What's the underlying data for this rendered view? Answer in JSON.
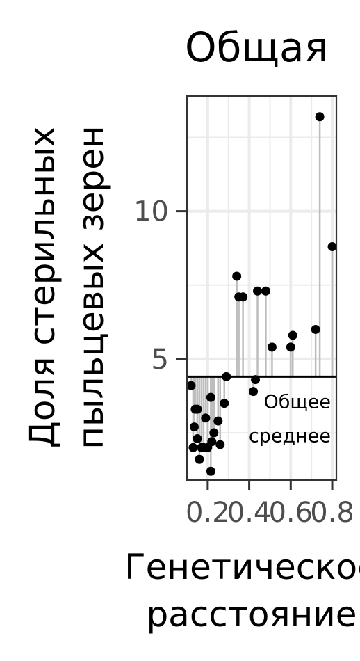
{
  "chart_data": {
    "type": "scatter",
    "title": "Общая",
    "xlabel_lines": [
      "Генетическое",
      "расстояние"
    ],
    "ylabel_lines": [
      "Доля стерильных",
      "пыльцевых зерен"
    ],
    "xlim": [
      0.1,
      0.82
    ],
    "ylim": [
      0.9,
      13.9
    ],
    "x_ticks": [
      0.2,
      0.4,
      0.6,
      0.8
    ],
    "x_tick_labels": [
      "0.2",
      "0.4",
      "0.6",
      "0.8"
    ],
    "y_ticks": [
      5,
      10
    ],
    "y_tick_labels": [
      "5",
      "10"
    ],
    "minor_x_gridlines": [
      0.1,
      0.3,
      0.5,
      0.7
    ],
    "minor_y_gridlines": [
      2.5,
      7.5,
      12.5
    ],
    "grid": true,
    "reference_line": {
      "y": 4.4,
      "label_lines": [
        "Общее",
        "среднее"
      ]
    },
    "segments_to_reference": true,
    "colors": {
      "points": "#000000",
      "segments": "#bdbdbd",
      "grid": "#ebebeb",
      "panel_border": "#333333"
    },
    "points": [
      {
        "x": 0.12,
        "y": 4.1
      },
      {
        "x": 0.13,
        "y": 2.0
      },
      {
        "x": 0.135,
        "y": 2.7
      },
      {
        "x": 0.14,
        "y": 3.3
      },
      {
        "x": 0.15,
        "y": 3.3
      },
      {
        "x": 0.15,
        "y": 2.3
      },
      {
        "x": 0.16,
        "y": 1.6
      },
      {
        "x": 0.17,
        "y": 2.0
      },
      {
        "x": 0.18,
        "y": 2.0
      },
      {
        "x": 0.19,
        "y": 3.0
      },
      {
        "x": 0.2,
        "y": 2.0
      },
      {
        "x": 0.215,
        "y": 1.2
      },
      {
        "x": 0.215,
        "y": 3.7
      },
      {
        "x": 0.22,
        "y": 2.2
      },
      {
        "x": 0.23,
        "y": 2.5
      },
      {
        "x": 0.25,
        "y": 2.9
      },
      {
        "x": 0.26,
        "y": 2.1
      },
      {
        "x": 0.28,
        "y": 3.5
      },
      {
        "x": 0.29,
        "y": 4.4
      },
      {
        "x": 0.34,
        "y": 7.8
      },
      {
        "x": 0.35,
        "y": 7.1
      },
      {
        "x": 0.37,
        "y": 7.1
      },
      {
        "x": 0.42,
        "y": 3.9
      },
      {
        "x": 0.43,
        "y": 4.3
      },
      {
        "x": 0.44,
        "y": 7.3
      },
      {
        "x": 0.48,
        "y": 7.3
      },
      {
        "x": 0.51,
        "y": 5.4
      },
      {
        "x": 0.6,
        "y": 5.4
      },
      {
        "x": 0.61,
        "y": 5.8
      },
      {
        "x": 0.72,
        "y": 6.0
      },
      {
        "x": 0.74,
        "y": 13.2
      },
      {
        "x": 0.8,
        "y": 8.8
      }
    ]
  }
}
